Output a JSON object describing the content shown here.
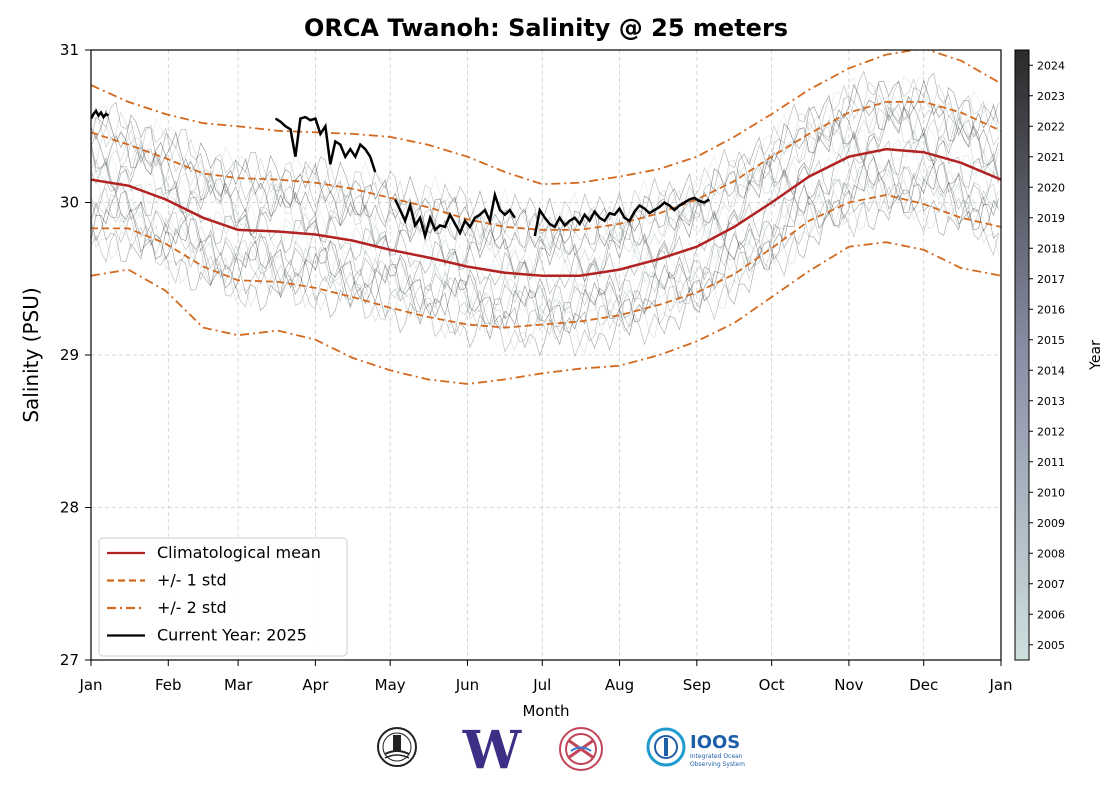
{
  "chart_data": {
    "type": "line",
    "title": "ORCA Twanoh: Salinity @ 25 meters",
    "xlabel": "Month",
    "ylabel": "Salinity (PSU)",
    "x_ticks": [
      "Jan",
      "Feb",
      "Mar",
      "Apr",
      "May",
      "Jun",
      "Jul",
      "Aug",
      "Sep",
      "Oct",
      "Nov",
      "Dec",
      "Jan"
    ],
    "xlim_day_of_year": [
      0,
      365
    ],
    "ylim": [
      27,
      31
    ],
    "y_ticks": [
      27,
      28,
      29,
      30,
      31
    ],
    "grid": true,
    "legend_position": "lower-left",
    "legend": [
      {
        "label": "Climatological mean",
        "style": "solid",
        "color": "#b22222"
      },
      {
        "label": "+/- 1 std",
        "style": "dashed",
        "color": "#d2691e"
      },
      {
        "label": "+/- 2 std",
        "style": "dashdot",
        "color": "#d2691e"
      },
      {
        "label": "Current Year: 2025",
        "style": "solid",
        "color": "#000000"
      }
    ],
    "colorbar": {
      "label": "Year",
      "ticks": [
        "2005",
        "2006",
        "2007",
        "2008",
        "2009",
        "2010",
        "2011",
        "2012",
        "2013",
        "2014",
        "2015",
        "2016",
        "2017",
        "2018",
        "2019",
        "2020",
        "2021",
        "2022",
        "2023",
        "2024"
      ],
      "color_start": "#cfe0df",
      "color_end": "#2a2a2a"
    },
    "series": [
      {
        "name": "Climatological mean",
        "color": "#b22222",
        "x": [
          0,
          15,
          30,
          45,
          59,
          75,
          90,
          105,
          120,
          135,
          151,
          166,
          181,
          196,
          212,
          228,
          243,
          258,
          273,
          288,
          304,
          319,
          334,
          349,
          365
        ],
        "y": [
          30.15,
          30.11,
          30.02,
          29.9,
          29.82,
          29.81,
          29.79,
          29.75,
          29.69,
          29.64,
          29.58,
          29.54,
          29.52,
          29.52,
          29.56,
          29.63,
          29.71,
          29.84,
          30.0,
          30.17,
          30.3,
          30.35,
          30.33,
          30.26,
          30.15
        ]
      },
      {
        "name": "+/- 1 std",
        "color": "#d2691e",
        "style": "dashed",
        "x": [
          0,
          15,
          30,
          45,
          59,
          75,
          90,
          105,
          120,
          135,
          151,
          166,
          181,
          196,
          212,
          228,
          243,
          258,
          273,
          288,
          304,
          319,
          334,
          349,
          365
        ],
        "y": [
          30.46,
          30.38,
          30.29,
          30.19,
          30.16,
          30.15,
          30.13,
          30.09,
          30.03,
          29.97,
          29.89,
          29.84,
          29.82,
          29.82,
          29.86,
          29.93,
          30.02,
          30.14,
          30.3,
          30.45,
          30.59,
          30.66,
          30.66,
          30.59,
          30.47
        ]
      },
      {
        "name": "+/- 1 std",
        "color": "#d2691e",
        "style": "dashed",
        "x": [
          0,
          15,
          30,
          45,
          59,
          75,
          90,
          105,
          120,
          135,
          151,
          166,
          181,
          196,
          212,
          228,
          243,
          258,
          273,
          288,
          304,
          319,
          334,
          349,
          365
        ],
        "y": [
          29.83,
          29.83,
          29.73,
          29.58,
          29.49,
          29.48,
          29.44,
          29.38,
          29.31,
          29.25,
          29.2,
          29.18,
          29.2,
          29.22,
          29.26,
          29.33,
          29.41,
          29.53,
          29.7,
          29.88,
          30.0,
          30.05,
          29.99,
          29.9,
          29.84
        ]
      },
      {
        "name": "+/- 2 std",
        "color": "#d2691e",
        "style": "dashdot",
        "x": [
          0,
          15,
          30,
          45,
          59,
          75,
          90,
          105,
          120,
          135,
          151,
          166,
          181,
          196,
          212,
          228,
          243,
          258,
          273,
          288,
          304,
          319,
          334,
          349,
          365
        ],
        "y": [
          30.77,
          30.66,
          30.58,
          30.52,
          30.5,
          30.47,
          30.46,
          30.45,
          30.43,
          30.38,
          30.3,
          30.2,
          30.12,
          30.13,
          30.17,
          30.22,
          30.3,
          30.43,
          30.58,
          30.74,
          30.88,
          30.97,
          31.01,
          30.93,
          30.78
        ]
      },
      {
        "name": "+/- 2 std",
        "color": "#d2691e",
        "style": "dashdot",
        "x": [
          0,
          15,
          30,
          45,
          59,
          75,
          90,
          105,
          120,
          135,
          151,
          166,
          181,
          196,
          212,
          228,
          243,
          258,
          273,
          288,
          304,
          319,
          334,
          349,
          365
        ],
        "y": [
          29.52,
          29.56,
          29.42,
          29.18,
          29.13,
          29.16,
          29.1,
          28.98,
          28.9,
          28.84,
          28.81,
          28.84,
          28.88,
          28.91,
          28.93,
          29.0,
          29.09,
          29.21,
          29.38,
          29.55,
          29.71,
          29.74,
          29.69,
          29.57,
          29.52
        ]
      },
      {
        "name": "Current Year: 2025",
        "color": "#000000",
        "segments": [
          {
            "x": [
              0,
              1,
              2,
              3,
              4,
              5,
              6,
              7
            ],
            "y": [
              30.55,
              30.58,
              30.6,
              30.57,
              30.59,
              30.56,
              30.58,
              30.57
            ]
          },
          {
            "x": [
              74,
              76,
              78,
              80,
              82,
              84,
              86,
              88,
              90,
              92,
              94,
              96,
              98,
              100,
              102,
              104,
              106,
              108,
              110,
              112,
              114
            ],
            "y": [
              30.55,
              30.53,
              30.5,
              30.48,
              30.3,
              30.55,
              30.56,
              30.54,
              30.55,
              30.45,
              30.5,
              30.25,
              30.4,
              30.38,
              30.3,
              30.35,
              30.3,
              30.38,
              30.35,
              30.3,
              30.2
            ]
          },
          {
            "x": [
              122,
              124,
              126,
              128,
              130,
              132,
              134,
              136,
              138,
              140,
              142,
              144,
              146,
              148,
              150,
              152,
              154,
              156,
              158,
              160,
              162,
              164,
              166,
              168,
              170
            ],
            "y": [
              30.02,
              29.95,
              29.88,
              29.98,
              29.85,
              29.9,
              29.78,
              29.9,
              29.82,
              29.85,
              29.84,
              29.92,
              29.86,
              29.8,
              29.88,
              29.84,
              29.9,
              29.92,
              29.95,
              29.88,
              30.05,
              29.95,
              29.92,
              29.95,
              29.9
            ]
          },
          {
            "x": [
              178,
              180,
              182,
              184,
              186,
              188,
              190,
              192,
              194,
              196,
              198,
              200,
              202,
              204,
              206,
              208,
              210,
              212,
              214,
              216,
              218,
              220,
              222,
              224,
              226,
              228,
              230,
              232,
              234,
              236,
              238,
              240,
              242,
              244,
              246,
              248
            ],
            "y": [
              29.78,
              29.95,
              29.9,
              29.86,
              29.84,
              29.9,
              29.85,
              29.88,
              29.9,
              29.86,
              29.92,
              29.88,
              29.94,
              29.9,
              29.88,
              29.93,
              29.92,
              29.96,
              29.9,
              29.88,
              29.94,
              29.98,
              29.96,
              29.93,
              29.95,
              29.97,
              30.0,
              29.98,
              29.95,
              29.98,
              30.0,
              30.02,
              30.03,
              30.01,
              30.0,
              30.02
            ]
          }
        ]
      }
    ]
  },
  "logos": [
    {
      "name": "orca-logo"
    },
    {
      "name": "uw-logo",
      "text": "W",
      "color": "#3b2f86"
    },
    {
      "name": "nanoos-logo",
      "color": "#c2455a"
    },
    {
      "name": "ioos-logo",
      "text": "IOOS",
      "subtext_1": "Integrated Ocean",
      "subtext_2": "Observing System",
      "color": "#1f5fa8"
    }
  ]
}
